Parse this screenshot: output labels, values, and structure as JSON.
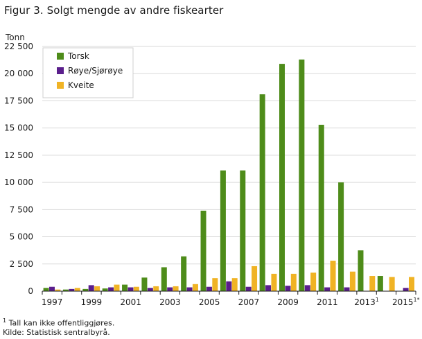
{
  "title": "Figur 3. Solgt mengde av andre fiskearter",
  "footnotes": {
    "note1_mark": "1",
    "note1_text": " Tall kan ikke offentliggjøres.",
    "source": "Kilde: Statistisk sentralbyrå."
  },
  "chart_data": {
    "type": "bar",
    "title": "Figur 3. Solgt mengde av andre fiskearter",
    "ylabel": "Tonn",
    "xlabel": "",
    "ylim": [
      0,
      22500
    ],
    "y_ticks": [
      0,
      2500,
      5000,
      7500,
      10000,
      12500,
      15000,
      17500,
      20000,
      22500
    ],
    "y_tick_labels": [
      "0",
      "2 500",
      "5 000",
      "7 500",
      "10 000",
      "12 500",
      "15 000",
      "17 500",
      "20 000",
      "22 500"
    ],
    "grid": true,
    "legend_position": "top-left",
    "categories": [
      "1997",
      "1998",
      "1999",
      "2000",
      "2001",
      "2002",
      "2003",
      "2004",
      "2005",
      "2006",
      "2007",
      "2008",
      "2009",
      "2010",
      "2011",
      "2012",
      "2013",
      "2014",
      "2015"
    ],
    "x_tick_labels": [
      {
        "index": 0,
        "text": "1997",
        "sup": ""
      },
      {
        "index": 2,
        "text": "1999",
        "sup": ""
      },
      {
        "index": 4,
        "text": "2001",
        "sup": ""
      },
      {
        "index": 6,
        "text": "2003",
        "sup": ""
      },
      {
        "index": 8,
        "text": "2005",
        "sup": ""
      },
      {
        "index": 10,
        "text": "2007",
        "sup": ""
      },
      {
        "index": 12,
        "text": "2009",
        "sup": ""
      },
      {
        "index": 14,
        "text": "2011",
        "sup": ""
      },
      {
        "index": 16,
        "text": "2013",
        "sup": "1"
      },
      {
        "index": 18,
        "text": "2015",
        "sup": "1*"
      }
    ],
    "series": [
      {
        "name": "Torsk",
        "color": "#4e8c1a",
        "values": [
          300,
          150,
          200,
          250,
          600,
          1250,
          2200,
          3200,
          7400,
          11100,
          11100,
          18100,
          20900,
          21300,
          15300,
          10000,
          3750,
          1400,
          null
        ]
      },
      {
        "name": "Røye/Sjørøye",
        "color": "#5a1e8c",
        "values": [
          400,
          200,
          550,
          350,
          350,
          300,
          350,
          350,
          400,
          900,
          400,
          550,
          500,
          550,
          350,
          350,
          null,
          null,
          300
        ]
      },
      {
        "name": "Kveite",
        "color": "#f0b325",
        "values": [
          150,
          300,
          450,
          600,
          400,
          450,
          450,
          650,
          1200,
          1200,
          2300,
          1600,
          1600,
          1700,
          2800,
          1800,
          1400,
          1300,
          1300
        ]
      }
    ]
  }
}
